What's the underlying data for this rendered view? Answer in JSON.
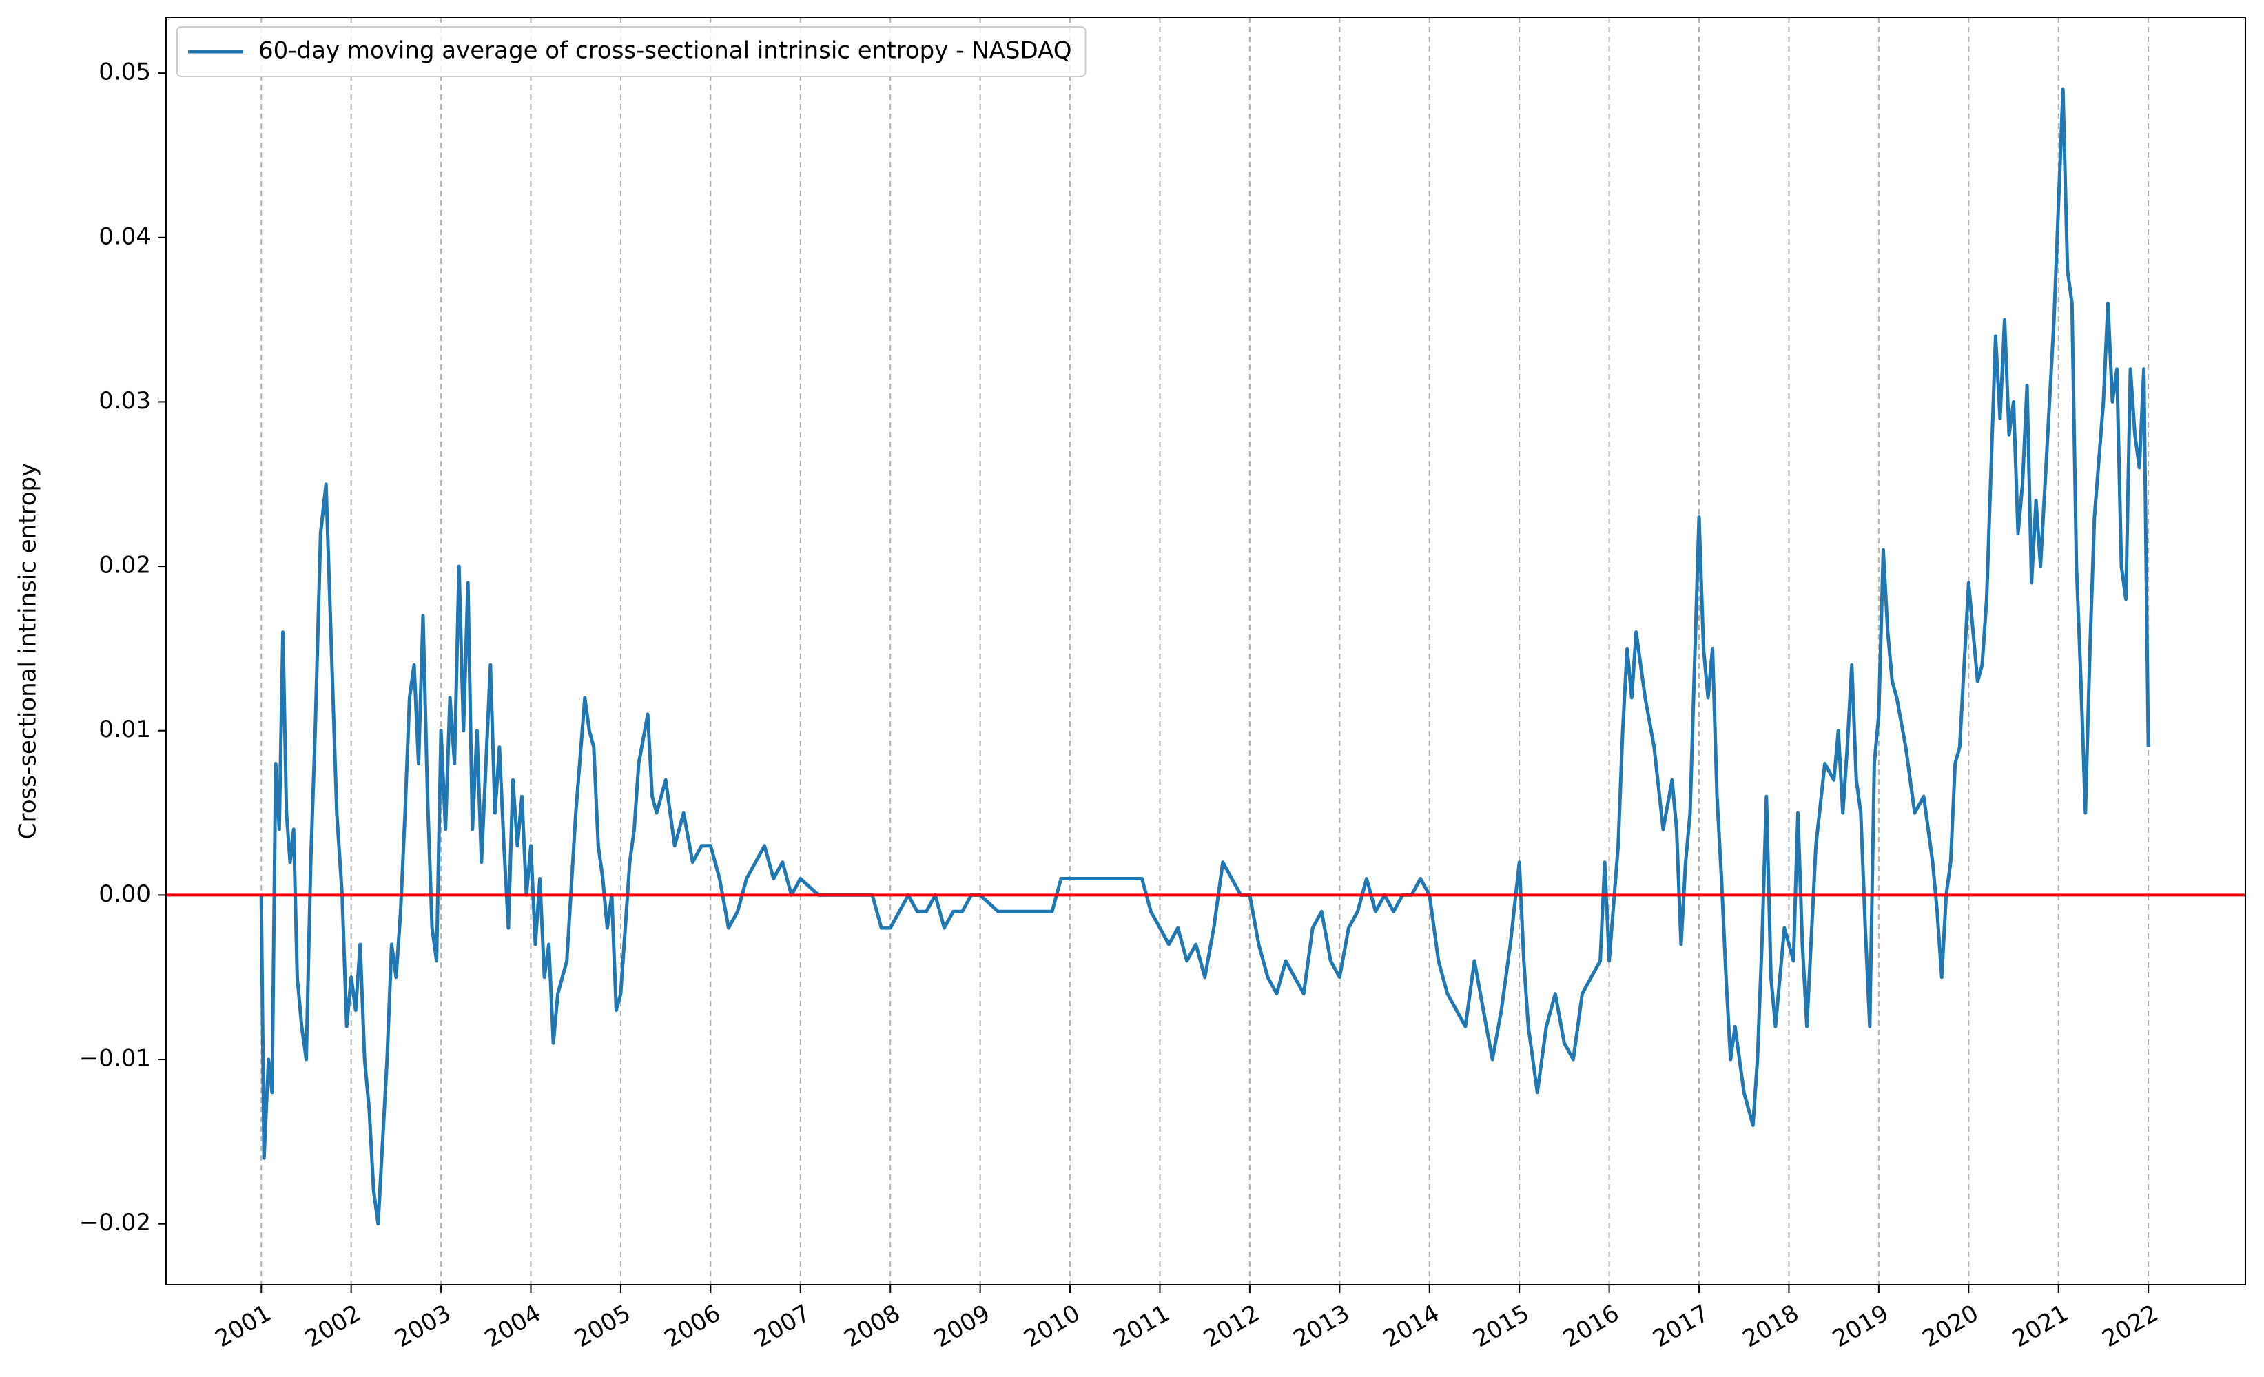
{
  "chart_data": {
    "type": "line",
    "ylabel": "Cross-sectional intrinsic entropy",
    "xlim": [
      1999.94,
      2023.08
    ],
    "ylim": [
      -0.0237,
      0.0534
    ],
    "xticks": [
      2001,
      2002,
      2003,
      2004,
      2005,
      2006,
      2007,
      2008,
      2009,
      2010,
      2011,
      2012,
      2013,
      2014,
      2015,
      2016,
      2017,
      2018,
      2019,
      2020,
      2021,
      2022
    ],
    "yticks": [
      {
        "value": -0.02,
        "label": "−0.02"
      },
      {
        "value": -0.01,
        "label": "−0.01"
      },
      {
        "value": 0,
        "label": "0.00"
      },
      0.01,
      0.02,
      0.03,
      0.04,
      0.05
    ],
    "xgrid": true,
    "legend": "upper left",
    "hline": {
      "value": 0,
      "color": "#ff0000"
    },
    "series": [
      {
        "name": "60-day moving average of cross-sectional intrinsic entropy - NASDAQ",
        "color": "#1f77b4",
        "x": [
          2001.0,
          2001.03,
          2001.08,
          2001.12,
          2001.16,
          2001.2,
          2001.24,
          2001.28,
          2001.32,
          2001.36,
          2001.4,
          2001.45,
          2001.5,
          2001.55,
          2001.6,
          2001.66,
          2001.72,
          2001.78,
          2001.84,
          2001.9,
          2001.95,
          2002.0,
          2002.05,
          2002.1,
          2002.15,
          2002.2,
          2002.25,
          2002.3,
          2002.35,
          2002.4,
          2002.45,
          2002.5,
          2002.55,
          2002.6,
          2002.65,
          2002.7,
          2002.75,
          2002.8,
          2002.85,
          2002.9,
          2002.95,
          2003.0,
          2003.05,
          2003.1,
          2003.15,
          2003.2,
          2003.25,
          2003.3,
          2003.35,
          2003.4,
          2003.45,
          2003.5,
          2003.55,
          2003.6,
          2003.65,
          2003.7,
          2003.75,
          2003.8,
          2003.85,
          2003.9,
          2003.95,
          2004.0,
          2004.05,
          2004.1,
          2004.15,
          2004.2,
          2004.25,
          2004.3,
          2004.4,
          2004.5,
          2004.6,
          2004.65,
          2004.7,
          2004.75,
          2004.8,
          2004.85,
          2004.9,
          2004.95,
          2005.0,
          2005.05,
          2005.1,
          2005.15,
          2005.2,
          2005.3,
          2005.35,
          2005.4,
          2005.5,
          2005.6,
          2005.7,
          2005.8,
          2005.9,
          2006.0,
          2006.1,
          2006.2,
          2006.3,
          2006.4,
          2006.5,
          2006.6,
          2006.7,
          2006.8,
          2006.9,
          2007.0,
          2007.2,
          2007.4,
          2007.6,
          2007.8,
          2007.9,
          2008.0,
          2008.1,
          2008.2,
          2008.3,
          2008.4,
          2008.5,
          2008.6,
          2008.7,
          2008.8,
          2008.9,
          2009.0,
          2009.2,
          2009.4,
          2009.6,
          2009.8,
          2009.9,
          2010.0,
          2010.2,
          2010.4,
          2010.6,
          2010.8,
          2010.9,
          2011.0,
          2011.1,
          2011.2,
          2011.3,
          2011.4,
          2011.5,
          2011.6,
          2011.7,
          2011.8,
          2011.9,
          2012.0,
          2012.1,
          2012.2,
          2012.3,
          2012.4,
          2012.5,
          2012.6,
          2012.7,
          2012.8,
          2012.9,
          2013.0,
          2013.1,
          2013.2,
          2013.3,
          2013.4,
          2013.5,
          2013.6,
          2013.7,
          2013.8,
          2013.9,
          2014.0,
          2014.1,
          2014.2,
          2014.3,
          2014.4,
          2014.5,
          2014.6,
          2014.7,
          2014.8,
          2014.9,
          2015.0,
          2015.05,
          2015.1,
          2015.2,
          2015.3,
          2015.4,
          2015.5,
          2015.6,
          2015.7,
          2015.8,
          2015.9,
          2015.95,
          2016.0,
          2016.1,
          2016.15,
          2016.2,
          2016.25,
          2016.3,
          2016.4,
          2016.5,
          2016.6,
          2016.7,
          2016.75,
          2016.8,
          2016.85,
          2016.9,
          2017.0,
          2017.05,
          2017.1,
          2017.15,
          2017.2,
          2017.25,
          2017.3,
          2017.35,
          2017.4,
          2017.5,
          2017.6,
          2017.65,
          2017.7,
          2017.75,
          2017.8,
          2017.85,
          2017.95,
          2018.05,
          2018.1,
          2018.15,
          2018.2,
          2018.3,
          2018.4,
          2018.5,
          2018.55,
          2018.6,
          2018.65,
          2018.7,
          2018.75,
          2018.8,
          2018.85,
          2018.9,
          2018.95,
          2019.0,
          2019.05,
          2019.1,
          2019.15,
          2019.2,
          2019.3,
          2019.4,
          2019.5,
          2019.6,
          2019.65,
          2019.7,
          2019.75,
          2019.8,
          2019.85,
          2019.9,
          2020.0,
          2020.05,
          2020.1,
          2020.15,
          2020.2,
          2020.25,
          2020.3,
          2020.35,
          2020.4,
          2020.45,
          2020.5,
          2020.55,
          2020.6,
          2020.65,
          2020.7,
          2020.75,
          2020.8,
          2020.85,
          2020.9,
          2020.95,
          2021.0,
          2021.05,
          2021.1,
          2021.15,
          2021.2,
          2021.25,
          2021.3,
          2021.35,
          2021.4,
          2021.5,
          2021.55,
          2021.6,
          2021.65,
          2021.7,
          2021.75,
          2021.8,
          2021.85,
          2021.9,
          2021.95,
          2022.0
        ],
        "values": [
          0.0,
          -0.016,
          -0.01,
          -0.012,
          0.008,
          0.004,
          0.016,
          0.005,
          0.002,
          0.004,
          -0.005,
          -0.008,
          -0.01,
          0.002,
          0.01,
          0.022,
          0.025,
          0.015,
          0.005,
          0.0,
          -0.008,
          -0.005,
          -0.007,
          -0.003,
          -0.01,
          -0.013,
          -0.018,
          -0.02,
          -0.015,
          -0.01,
          -0.003,
          -0.005,
          -0.001,
          0.005,
          0.012,
          0.014,
          0.008,
          0.017,
          0.006,
          -0.002,
          -0.004,
          0.01,
          0.004,
          0.012,
          0.008,
          0.02,
          0.01,
          0.019,
          0.004,
          0.01,
          0.002,
          0.008,
          0.014,
          0.005,
          0.009,
          0.003,
          -0.002,
          0.007,
          0.003,
          0.006,
          0.0,
          0.003,
          -0.003,
          0.001,
          -0.005,
          -0.003,
          -0.009,
          -0.006,
          -0.004,
          0.005,
          0.012,
          0.01,
          0.009,
          0.003,
          0.001,
          -0.002,
          0.0,
          -0.007,
          -0.006,
          -0.002,
          0.002,
          0.004,
          0.008,
          0.011,
          0.006,
          0.005,
          0.007,
          0.003,
          0.005,
          0.002,
          0.003,
          0.003,
          0.001,
          -0.002,
          -0.001,
          0.001,
          0.002,
          0.003,
          0.001,
          0.002,
          0.0,
          0.001,
          0.0,
          0.0,
          0.0,
          0.0,
          -0.002,
          -0.002,
          -0.001,
          0.0,
          -0.001,
          -0.001,
          0.0,
          -0.002,
          -0.001,
          -0.001,
          0.0,
          0.0,
          -0.001,
          -0.001,
          -0.001,
          -0.001,
          0.001,
          0.001,
          0.001,
          0.001,
          0.001,
          0.001,
          -0.001,
          -0.002,
          -0.003,
          -0.002,
          -0.004,
          -0.003,
          -0.005,
          -0.002,
          0.002,
          0.001,
          0.0,
          0.0,
          -0.003,
          -0.005,
          -0.006,
          -0.004,
          -0.005,
          -0.006,
          -0.002,
          -0.001,
          -0.004,
          -0.005,
          -0.002,
          -0.001,
          0.001,
          -0.001,
          0.0,
          -0.001,
          0.0,
          0.0,
          0.001,
          0.0,
          -0.004,
          -0.006,
          -0.007,
          -0.008,
          -0.004,
          -0.007,
          -0.01,
          -0.007,
          -0.003,
          0.002,
          -0.004,
          -0.008,
          -0.012,
          -0.008,
          -0.006,
          -0.009,
          -0.01,
          -0.006,
          -0.005,
          -0.004,
          0.002,
          -0.004,
          0.003,
          0.01,
          0.015,
          0.012,
          0.016,
          0.012,
          0.009,
          0.004,
          0.007,
          0.004,
          -0.003,
          0.002,
          0.005,
          0.023,
          0.015,
          0.012,
          0.015,
          0.006,
          0.001,
          -0.005,
          -0.01,
          -0.008,
          -0.012,
          -0.014,
          -0.01,
          -0.003,
          0.006,
          -0.005,
          -0.008,
          -0.002,
          -0.004,
          0.005,
          -0.003,
          -0.008,
          0.003,
          0.008,
          0.007,
          0.01,
          0.005,
          0.009,
          0.014,
          0.007,
          0.005,
          -0.002,
          -0.008,
          0.008,
          0.011,
          0.021,
          0.016,
          0.013,
          0.012,
          0.009,
          0.005,
          0.006,
          0.002,
          -0.001,
          -0.005,
          0.0,
          0.002,
          0.008,
          0.009,
          0.019,
          0.016,
          0.013,
          0.014,
          0.018,
          0.026,
          0.034,
          0.029,
          0.035,
          0.028,
          0.03,
          0.022,
          0.025,
          0.031,
          0.019,
          0.024,
          0.02,
          0.025,
          0.03,
          0.035,
          0.042,
          0.049,
          0.038,
          0.036,
          0.02,
          0.013,
          0.005,
          0.015,
          0.023,
          0.03,
          0.036,
          0.03,
          0.032,
          0.02,
          0.018,
          0.032,
          0.028,
          0.026,
          0.032,
          0.009
        ]
      }
    ]
  }
}
